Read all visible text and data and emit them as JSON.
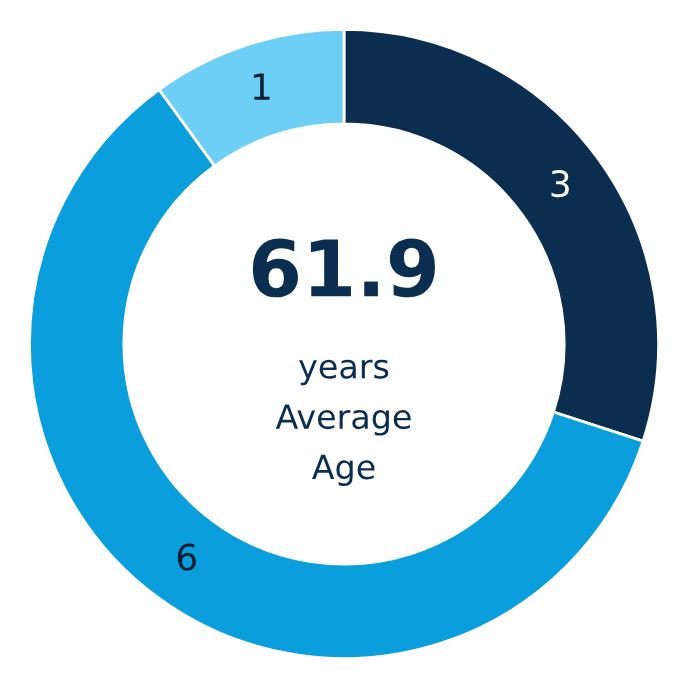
{
  "chart_data": {
    "type": "donut",
    "categories": [
      null,
      null,
      null
    ],
    "values": [
      3,
      6,
      1
    ],
    "colors": [
      "#0b2d4f",
      "#0a9fdc",
      "#6dcff6"
    ],
    "data_labels": true,
    "annotations": [
      "61.9",
      "years",
      "Average",
      "Age"
    ]
  }
}
